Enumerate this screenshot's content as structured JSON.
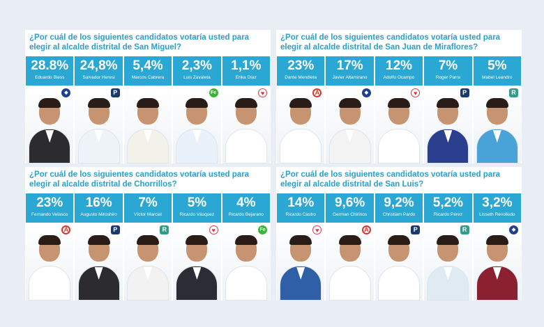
{
  "panels": [
    {
      "question": "¿Por cuál de los siguientes candidatos votaría usted para elegir al alcalde distrital de San Miguel?",
      "candidates": [
        {
          "pct": "28.8%",
          "name": "Eduardo Bless",
          "logo": "party-logo",
          "logo_color": "#1f3f8f",
          "shirt": "#2c2c2e"
        },
        {
          "pct": "24,8%",
          "name": "Salvador Heresi",
          "logo": "P",
          "logo_color": "#1a3a6e",
          "shirt": "#eef3f8"
        },
        {
          "pct": "5,4%",
          "name": "Marcos Cabrera",
          "logo": "",
          "logo_color": "#ffffff",
          "shirt": "#f2f2ea"
        },
        {
          "pct": "2,3%",
          "name": "Luis Zavaleta",
          "logo": "Fe",
          "logo_color": "#3bb43a",
          "shirt": "#e9f1fa"
        },
        {
          "pct": "1,1%",
          "name": "Erika Díaz",
          "logo": "heart",
          "logo_color": "#d23a4a",
          "shirt": "#ffffff"
        }
      ]
    },
    {
      "question": "¿Por cuál de los siguientes candidatos votaría usted para elegir al alcalde distrital de San Juan de Miraflores?",
      "candidates": [
        {
          "pct": "23%",
          "name": "Dante Mendieta",
          "logo": "A",
          "logo_color": "#d8352b",
          "shirt": "#ffffff"
        },
        {
          "pct": "17%",
          "name": "Javier Altamirano",
          "logo": "party-logo",
          "logo_color": "#1f3f8f",
          "shirt": "#f3f3f3"
        },
        {
          "pct": "12%",
          "name": "Adolfo Ocampo",
          "logo": "heart",
          "logo_color": "#d23a4a",
          "shirt": "#ffffff"
        },
        {
          "pct": "7%",
          "name": "Roger Parra",
          "logo": "P",
          "logo_color": "#1a3a6e",
          "shirt": "#2b3f8f"
        },
        {
          "pct": "5%",
          "name": "Mabel Leandro",
          "logo": "R",
          "logo_color": "#2f9d8a",
          "shirt": "#4aa3d8"
        }
      ]
    },
    {
      "question": "¿Por cuál de los siguientes candidatos votaría usted para elegir al alcalde distrital de Chorrillos?",
      "candidates": [
        {
          "pct": "23%",
          "name": "Fernando Velasco",
          "logo": "A",
          "logo_color": "#d8352b",
          "shirt": "#ffffff"
        },
        {
          "pct": "16%",
          "name": "Augusto Miroshiro",
          "logo": "P",
          "logo_color": "#1a3a6e",
          "shirt": "#2c2c2e"
        },
        {
          "pct": "7%",
          "name": "Víctor Marcial",
          "logo": "R",
          "logo_color": "#2f9d8a",
          "shirt": "#f2f2f2"
        },
        {
          "pct": "5%",
          "name": "Ricardo Vásquez",
          "logo": "heart",
          "logo_color": "#d23a4a",
          "shirt": "#2a2d36"
        },
        {
          "pct": "4%",
          "name": "Ricardo Bejarano",
          "logo": "Fe",
          "logo_color": "#3bb43a",
          "shirt": "#ffffff"
        }
      ]
    },
    {
      "question": "¿Por cuál de los siguientes candidatos votaría usted para elegir al alcalde distrital de San Luis?",
      "candidates": [
        {
          "pct": "14%",
          "name": "Ricardo Castro",
          "logo": "heart",
          "logo_color": "#d23a4a",
          "shirt": "#2f5fa6"
        },
        {
          "pct": "9,6%",
          "name": "German Chirinos",
          "logo": "A",
          "logo_color": "#d8352b",
          "shirt": "#ffffff"
        },
        {
          "pct": "9,2%",
          "name": "Christiam Pardo",
          "logo": "P",
          "logo_color": "#1a3a6e",
          "shirt": "#ffffff"
        },
        {
          "pct": "5,2%",
          "name": "Ricardo Pérez",
          "logo": "R",
          "logo_color": "#2f9d8a",
          "shirt": "#dfeaf3"
        },
        {
          "pct": "3,2%",
          "name": "Lisseth Revolledo",
          "logo": "party-logo",
          "logo_color": "#1f3f8f",
          "shirt": "#8a2030"
        }
      ]
    }
  ]
}
